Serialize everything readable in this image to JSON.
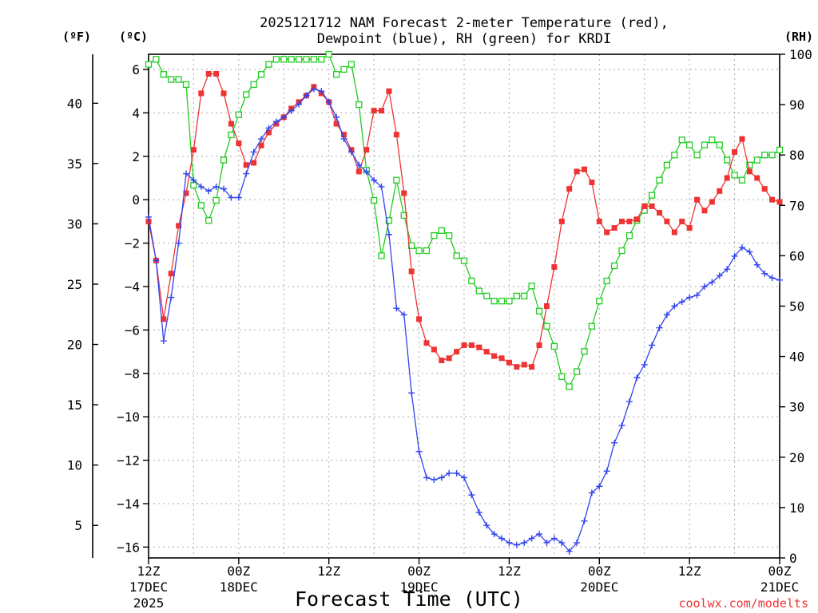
{
  "chart_data": {
    "type": "line",
    "title_line1": "2025121712 NAM Forecast 2-meter Temperature (red),",
    "title_line2": "Dewpoint (blue), RH (green) for KRDI",
    "xlabel": "Forecast Time (UTC)",
    "credit": "coolwx.com/modelts",
    "unit_left_f": "(ºF)",
    "unit_left_c": "(ºC)",
    "unit_right": "(RH)",
    "x_range_hours": [
      0,
      84
    ],
    "ylim_c": [
      -16.5,
      6.7
    ],
    "ylim_rh": [
      0,
      100
    ],
    "c_ticks": [
      {
        "v": 6,
        "label": "6"
      },
      {
        "v": 4,
        "label": "4"
      },
      {
        "v": 2,
        "label": "2"
      },
      {
        "v": 0,
        "label": "0"
      },
      {
        "v": -2,
        "label": "−2"
      },
      {
        "v": -4,
        "label": "−4"
      },
      {
        "v": -6,
        "label": "−6"
      },
      {
        "v": -8,
        "label": "−8"
      },
      {
        "v": -10,
        "label": "−10"
      },
      {
        "v": -12,
        "label": "−12"
      },
      {
        "v": -14,
        "label": "−14"
      },
      {
        "v": -16,
        "label": "−16"
      }
    ],
    "f_ticks": [
      {
        "v": 40,
        "label": "40"
      },
      {
        "v": 35,
        "label": "35"
      },
      {
        "v": 30,
        "label": "30"
      },
      {
        "v": 25,
        "label": "25"
      },
      {
        "v": 20,
        "label": "20"
      },
      {
        "v": 15,
        "label": "15"
      },
      {
        "v": 10,
        "label": "10"
      },
      {
        "v": 5,
        "label": "5"
      }
    ],
    "rh_ticks": [
      {
        "v": 100,
        "label": "100"
      },
      {
        "v": 90,
        "label": "90"
      },
      {
        "v": 80,
        "label": "80"
      },
      {
        "v": 70,
        "label": "70"
      },
      {
        "v": 60,
        "label": "60"
      },
      {
        "v": 50,
        "label": "50"
      },
      {
        "v": 40,
        "label": "40"
      },
      {
        "v": 30,
        "label": "30"
      },
      {
        "v": 20,
        "label": "20"
      },
      {
        "v": 10,
        "label": "10"
      },
      {
        "v": 0,
        "label": "0"
      }
    ],
    "x_ticks": [
      {
        "h": 0,
        "l1": "12Z",
        "l2": "17DEC",
        "l3": "2025"
      },
      {
        "h": 12,
        "l1": "00Z",
        "l2": "18DEC",
        "l3": ""
      },
      {
        "h": 24,
        "l1": "12Z",
        "l2": "",
        "l3": ""
      },
      {
        "h": 36,
        "l1": "00Z",
        "l2": "19DEC",
        "l3": ""
      },
      {
        "h": 48,
        "l1": "12Z",
        "l2": "",
        "l3": ""
      },
      {
        "h": 60,
        "l1": "00Z",
        "l2": "20DEC",
        "l3": ""
      },
      {
        "h": 72,
        "l1": "12Z",
        "l2": "",
        "l3": ""
      },
      {
        "h": 84,
        "l1": "00Z",
        "l2": "21DEC",
        "l3": ""
      }
    ],
    "series": [
      {
        "name": "Temperature",
        "unit": "C",
        "color": "#ee3333",
        "marker": "square-filled",
        "x": [
          0,
          1,
          2,
          3,
          4,
          5,
          6,
          7,
          8,
          9,
          10,
          11,
          12,
          13,
          14,
          15,
          16,
          17,
          18,
          19,
          20,
          21,
          22,
          23,
          24,
          25,
          26,
          27,
          28,
          29,
          30,
          31,
          32,
          33,
          34,
          35,
          36,
          37,
          38,
          39,
          40,
          41,
          42,
          43,
          44,
          45,
          46,
          47,
          48,
          49,
          50,
          51,
          52,
          53,
          54,
          55,
          56,
          57,
          58,
          59,
          60,
          61,
          62,
          63,
          64,
          65,
          66,
          67,
          68,
          69,
          70,
          71,
          72,
          73,
          74,
          75,
          76,
          77,
          78,
          79,
          80,
          81,
          82,
          83,
          84
        ],
        "values": [
          -1.0,
          -2.8,
          -5.5,
          -3.4,
          -1.2,
          0.3,
          2.3,
          4.9,
          5.8,
          5.8,
          4.9,
          3.5,
          2.6,
          1.6,
          1.7,
          2.5,
          3.1,
          3.5,
          3.8,
          4.2,
          4.5,
          4.8,
          5.2,
          4.9,
          4.5,
          3.5,
          3.0,
          2.3,
          1.3,
          2.3,
          4.1,
          4.1,
          5.0,
          3.0,
          0.3,
          -3.3,
          -5.5,
          -6.6,
          -6.9,
          -7.4,
          -7.3,
          -7.0,
          -6.7,
          -6.7,
          -6.8,
          -7.0,
          -7.2,
          -7.3,
          -7.5,
          -7.7,
          -7.6,
          -7.7,
          -6.7,
          -4.9,
          -3.1,
          -1.0,
          0.5,
          1.3,
          1.4,
          0.8,
          -1.0,
          -1.5,
          -1.3,
          -1.0,
          -1.0,
          -0.9,
          -0.3,
          -0.3,
          -0.6,
          -1.0,
          -1.5,
          -1.0,
          -1.3,
          0.0,
          -0.5,
          -0.1,
          0.4,
          1.0,
          2.2,
          2.8,
          1.3,
          1.0,
          0.5,
          0.0,
          -0.1
        ]
      },
      {
        "name": "Dewpoint",
        "unit": "C",
        "color": "#3344ee",
        "marker": "plus",
        "x": [
          0,
          1,
          2,
          3,
          4,
          5,
          6,
          7,
          8,
          9,
          10,
          11,
          12,
          13,
          14,
          15,
          16,
          17,
          18,
          19,
          20,
          21,
          22,
          23,
          24,
          25,
          26,
          27,
          28,
          29,
          30,
          31,
          32,
          33,
          34,
          35,
          36,
          37,
          38,
          39,
          40,
          41,
          42,
          43,
          44,
          45,
          46,
          47,
          48,
          49,
          50,
          51,
          52,
          53,
          54,
          55,
          56,
          57,
          58,
          59,
          60,
          61,
          62,
          63,
          64,
          65,
          66,
          67,
          68,
          69,
          70,
          71,
          72,
          73,
          74,
          75,
          76,
          77,
          78,
          79,
          80,
          81,
          82,
          83,
          84
        ],
        "values": [
          -0.8,
          -2.8,
          -6.5,
          -4.5,
          -2.0,
          1.2,
          0.9,
          0.6,
          0.4,
          0.6,
          0.5,
          0.1,
          0.1,
          1.2,
          2.2,
          2.8,
          3.3,
          3.6,
          3.8,
          4.1,
          4.4,
          4.8,
          5.1,
          5.0,
          4.5,
          3.8,
          2.8,
          2.2,
          1.6,
          1.3,
          0.9,
          0.6,
          -1.6,
          -5.0,
          -5.3,
          -8.9,
          -11.6,
          -12.8,
          -12.9,
          -12.8,
          -12.6,
          -12.6,
          -12.8,
          -13.6,
          -14.4,
          -15.0,
          -15.4,
          -15.6,
          -15.8,
          -15.9,
          -15.8,
          -15.6,
          -15.4,
          -15.8,
          -15.6,
          -15.8,
          -16.2,
          -15.8,
          -14.8,
          -13.5,
          -13.2,
          -12.5,
          -11.2,
          -10.4,
          -9.3,
          -8.2,
          -7.6,
          -6.7,
          -5.9,
          -5.3,
          -4.9,
          -4.7,
          -4.5,
          -4.4,
          -4.0,
          -3.8,
          -3.5,
          -3.2,
          -2.6,
          -2.2,
          -2.4,
          -3.0,
          -3.4,
          -3.6,
          -3.7
        ]
      },
      {
        "name": "RH",
        "unit": "%",
        "color": "#22cc22",
        "marker": "square-open",
        "x": [
          0,
          1,
          2,
          3,
          4,
          5,
          6,
          7,
          8,
          9,
          10,
          11,
          12,
          13,
          14,
          15,
          16,
          17,
          18,
          19,
          20,
          21,
          22,
          23,
          24,
          25,
          26,
          27,
          28,
          29,
          30,
          31,
          32,
          33,
          34,
          35,
          36,
          37,
          38,
          39,
          40,
          41,
          42,
          43,
          44,
          45,
          46,
          47,
          48,
          49,
          50,
          51,
          52,
          53,
          54,
          55,
          56,
          57,
          58,
          59,
          60,
          61,
          62,
          63,
          64,
          65,
          66,
          67,
          68,
          69,
          70,
          71,
          72,
          73,
          74,
          75,
          76,
          77,
          78,
          79,
          80,
          81,
          82,
          83,
          84
        ],
        "values": [
          98,
          99,
          96,
          95,
          95,
          94,
          74,
          70,
          67,
          71,
          79,
          84,
          88,
          92,
          94,
          96,
          98,
          99,
          99,
          99,
          99,
          99,
          99,
          99,
          100,
          96,
          97,
          98,
          90,
          77,
          71,
          60,
          67,
          75,
          68,
          62,
          61,
          61,
          64,
          65,
          64,
          60,
          59,
          55,
          53,
          52,
          51,
          51,
          51,
          52,
          52,
          54,
          49,
          46,
          42,
          36,
          34,
          37,
          41,
          46,
          51,
          55,
          58,
          61,
          64,
          67,
          69,
          72,
          75,
          78,
          80,
          83,
          82,
          80,
          82,
          83,
          82,
          79,
          76,
          75,
          78,
          79,
          80,
          80,
          81
        ]
      }
    ]
  }
}
